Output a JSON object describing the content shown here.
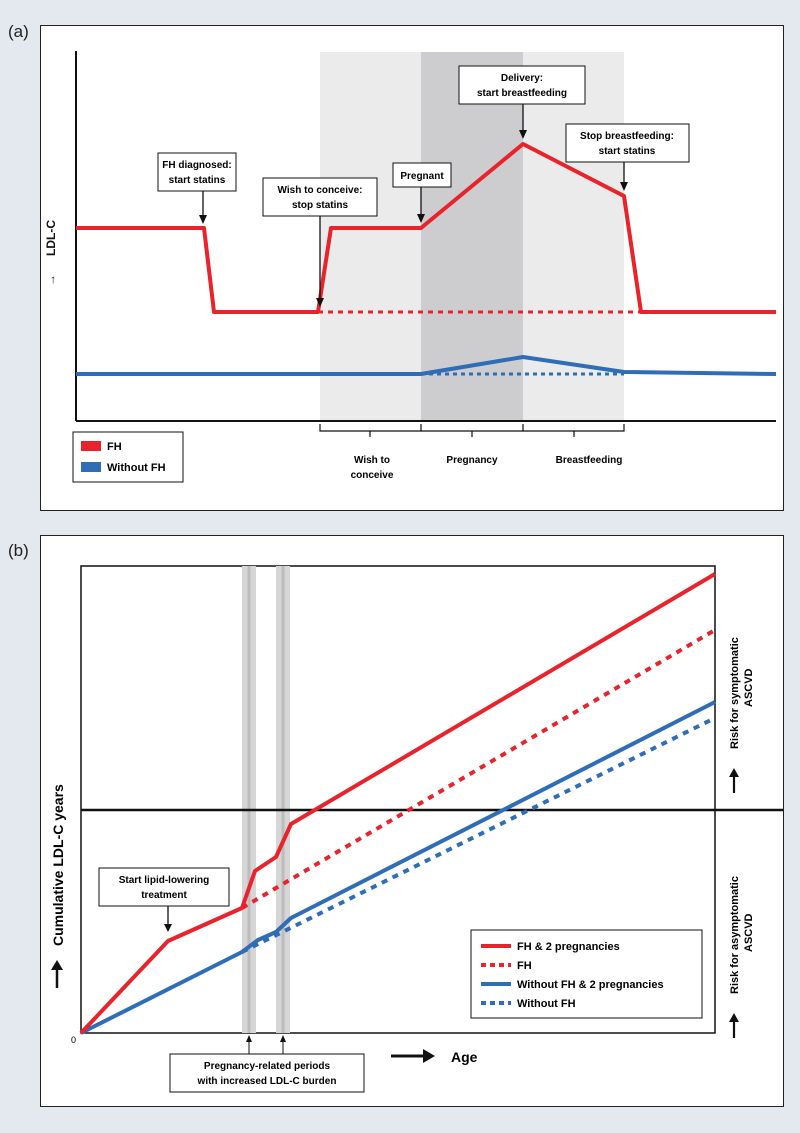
{
  "panel_a": {
    "label": "(a)",
    "ylabel": "LDL-C",
    "arrow": "→",
    "callouts": {
      "fh_diagnosed_1": "FH diagnosed:",
      "fh_diagnosed_2": "start statins",
      "wish_1": "Wish to conceive:",
      "wish_2": "stop statins",
      "pregnant": "Pregnant",
      "delivery_1": "Delivery:",
      "delivery_2": "start breastfeeding",
      "stop_bf_1": "Stop breastfeeding:",
      "stop_bf_2": "start statins"
    },
    "periods": {
      "wish_1": "Wish to",
      "wish_2": "conceive",
      "pregnancy": "Pregnancy",
      "breastfeeding": "Breastfeeding"
    },
    "legend": {
      "fh": "FH",
      "without_fh": "Without FH"
    },
    "colors": {
      "red": "#e8232b",
      "blue": "#2f6db6",
      "shade_light": "#ebebeb",
      "shade_dark": "#cdcdcf"
    }
  },
  "panel_b": {
    "label": "(b)",
    "ylabel": "Cumulative  LDL-C years",
    "xlabel": "Age",
    "origin": "0",
    "start_label_1": "Start lipid-lowering",
    "start_label_2": "treatment",
    "periods_label_1": "Pregnancy-related periods",
    "periods_label_2": "with increased LDL-C burden",
    "right_top_1": "Risk for symptomatic",
    "right_top_2": "ASCVD",
    "right_bottom_1": "Risk for asymptomatic",
    "right_bottom_2": "ASCVD",
    "legend": {
      "fh_preg": "FH & 2 pregnancies",
      "fh": "FH",
      "nofh_preg": "Without  FH & 2 pregnancies",
      "nofh": "Without FH"
    }
  }
}
